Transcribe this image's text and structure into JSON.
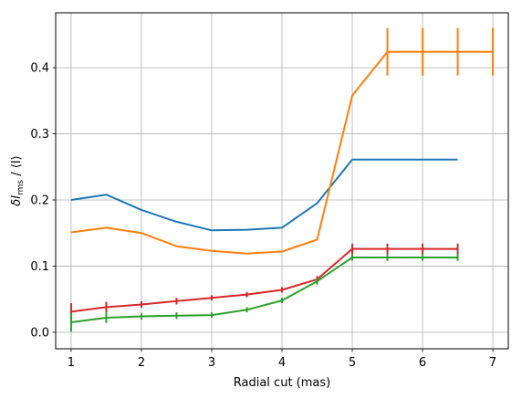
{
  "chart_data": {
    "type": "line",
    "title": "",
    "xlabel": "Radial cut (mas)",
    "ylabel_main": "δI",
    "ylabel_sub": "rms",
    "ylabel_rest": " / ⟨I⟩",
    "xlim": [
      0.78,
      7.22
    ],
    "ylim": [
      -0.025,
      0.483
    ],
    "xticks": [
      1,
      2,
      3,
      4,
      5,
      6,
      7
    ],
    "yticks": [
      0.0,
      0.1,
      0.2,
      0.3,
      0.4
    ],
    "xtick_labels": [
      "1",
      "2",
      "3",
      "4",
      "5",
      "6",
      "7"
    ],
    "ytick_labels": [
      "0.0",
      "0.1",
      "0.2",
      "0.3",
      "0.4"
    ],
    "grid": true,
    "legend": "none",
    "series": [
      {
        "color": "#1f77b4",
        "x": [
          1,
          1.5,
          2,
          2.5,
          3,
          3.5,
          4,
          4.5,
          5,
          5.5,
          6,
          6.5
        ],
        "y": [
          0.2,
          0.208,
          0.185,
          0.167,
          0.154,
          0.155,
          0.158,
          0.195,
          0.261,
          0.261,
          0.261,
          0.261
        ],
        "err": []
      },
      {
        "color": "#ff7f0e",
        "x": [
          1,
          1.5,
          2,
          2.5,
          3,
          3.5,
          4,
          4.5,
          5,
          5.5,
          6,
          6.5,
          7
        ],
        "y": [
          0.151,
          0.158,
          0.15,
          0.13,
          0.123,
          0.119,
          0.122,
          0.14,
          0.358,
          0.424,
          0.424,
          0.424,
          0.424
        ],
        "err": [
          0,
          0,
          0,
          0,
          0,
          0,
          0,
          0,
          0,
          0.036,
          0.036,
          0.036,
          0.036
        ]
      },
      {
        "color": "#d62728",
        "x": [
          1,
          1.5,
          2,
          2.5,
          3,
          3.5,
          4,
          4.5,
          5,
          5.5,
          6,
          6.5
        ],
        "y": [
          0.031,
          0.038,
          0.042,
          0.047,
          0.052,
          0.057,
          0.064,
          0.08,
          0.126,
          0.126,
          0.126,
          0.126
        ],
        "err": [
          0.013,
          0.008,
          0.005,
          0.005,
          0.004,
          0.004,
          0.004,
          0.005,
          0.008,
          0.008,
          0.008,
          0.008
        ]
      },
      {
        "color": "#2ca02c",
        "x": [
          1,
          1.5,
          2,
          2.5,
          3,
          3.5,
          4,
          4.5,
          5,
          5.5,
          6,
          6.5
        ],
        "y": [
          0.015,
          0.022,
          0.024,
          0.025,
          0.026,
          0.034,
          0.048,
          0.077,
          0.113,
          0.113,
          0.113,
          0.113
        ],
        "err": [
          0.014,
          0.008,
          0.005,
          0.005,
          0.004,
          0.004,
          0.004,
          0.005,
          0.005,
          0.005,
          0.005,
          0.005
        ]
      }
    ]
  }
}
